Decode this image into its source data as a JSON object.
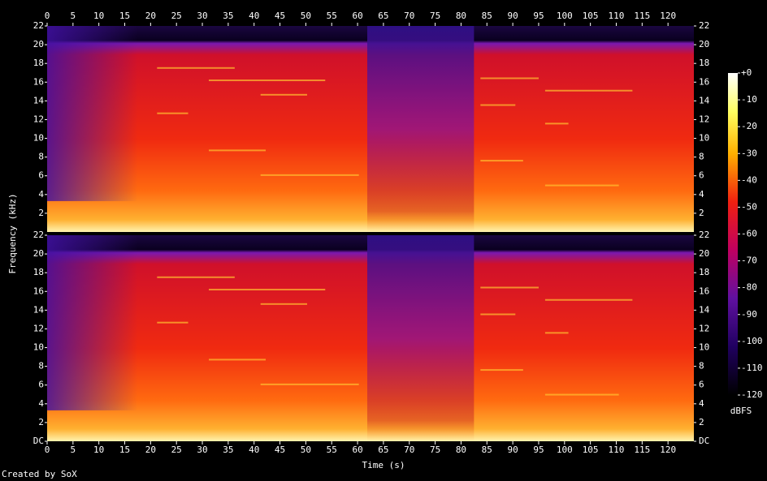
{
  "chart_data": {
    "type": "spectrogram",
    "xlabel": "Time (s)",
    "ylabel": "Frequency (kHz)",
    "xlim": [
      0,
      125
    ],
    "xticks": [
      0,
      5,
      10,
      15,
      20,
      25,
      30,
      35,
      40,
      45,
      50,
      55,
      60,
      65,
      70,
      75,
      80,
      85,
      90,
      95,
      100,
      105,
      110,
      115,
      120
    ],
    "ylim": [
      0,
      22
    ],
    "yticks": [
      {
        "value": 0,
        "label": "DC"
      },
      2,
      4,
      6,
      8,
      10,
      12,
      14,
      16,
      18,
      20,
      22
    ],
    "colorbar": {
      "label": "dBFS",
      "lim": [
        -120,
        0
      ],
      "ticks": [
        {
          "value": 0,
          "label": "+0"
        },
        -10,
        -20,
        -30,
        -40,
        -50,
        -60,
        -70,
        -80,
        -90,
        -100,
        -110,
        -120
      ]
    },
    "footer": "Created by SoX"
  }
}
